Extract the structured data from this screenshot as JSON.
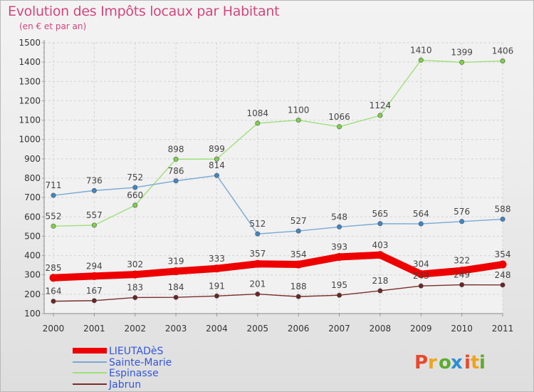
{
  "title": "Evolution des Impôts locaux par Habitant",
  "subtitle": "(en € et par an)",
  "logo": {
    "text": "Proxiti",
    "colors": [
      "#e8482d",
      "#f0a41c",
      "#5dab2f",
      "#2b8ed6",
      "#e8482d",
      "#f0a41c",
      "#5dab2f"
    ]
  },
  "colors": {
    "title": "#d2477b",
    "legend_text": "#3355dd"
  },
  "chart_data": {
    "type": "line",
    "x": [
      "2000",
      "2001",
      "2002",
      "2003",
      "2004",
      "2005",
      "2006",
      "2007",
      "2008",
      "2009",
      "2010",
      "2011"
    ],
    "yticks": [
      100,
      200,
      300,
      400,
      500,
      600,
      700,
      800,
      900,
      1000,
      1100,
      1200,
      1300,
      1400,
      1500
    ],
    "ylim": [
      100,
      1500
    ],
    "grid": true,
    "legend_position": "bottom-left",
    "series": [
      {
        "name": "Espinasse",
        "color": "#9ee07b",
        "marker": "#7fd04a",
        "values": [
          552,
          557,
          660,
          898,
          899,
          1084,
          1100,
          1066,
          1124,
          1410,
          1399,
          1406
        ]
      },
      {
        "name": "Sainte-Marie",
        "color": "#79a9d4",
        "marker": "#3f86c6",
        "values": [
          711,
          736,
          752,
          786,
          814,
          512,
          527,
          548,
          565,
          564,
          576,
          588
        ]
      },
      {
        "name": "Jabrun",
        "color": "#7a2e2e",
        "marker": "#6b2525",
        "values": [
          164,
          167,
          183,
          184,
          191,
          201,
          188,
          195,
          218,
          243,
          249,
          248
        ]
      },
      {
        "name": "LIEUTADèS",
        "color": "#ee0000",
        "marker": "#ee0000",
        "values": [
          285,
          294,
          302,
          319,
          333,
          357,
          354,
          393,
          403,
          304,
          322,
          354
        ]
      }
    ],
    "legend_order": [
      "LIEUTADèS",
      "Sainte-Marie",
      "Espinasse",
      "Jabrun"
    ]
  }
}
